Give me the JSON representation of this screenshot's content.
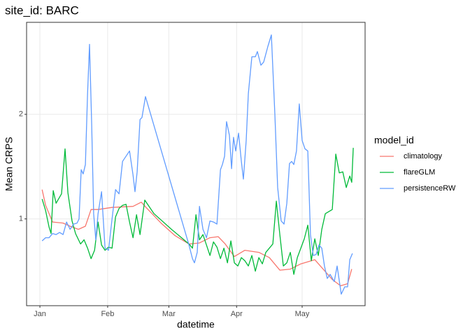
{
  "chart_data": {
    "type": "line",
    "title": "site_id: BARC",
    "x_label": "datetime",
    "y_label": "Mean CRPS",
    "legend_title": "model_id",
    "legend_position": "right",
    "grid": true,
    "xlim": [
      -6.1,
      148.8
    ],
    "xticks": [
      {
        "value": 0,
        "label": "Jan"
      },
      {
        "value": 31,
        "label": "Feb"
      },
      {
        "value": 59,
        "label": "Mar"
      },
      {
        "value": 90,
        "label": "Apr"
      },
      {
        "value": 120,
        "label": "May"
      }
    ],
    "ylim": [
      0.17,
      2.88
    ],
    "yticks": [
      1,
      2
    ],
    "series": [
      {
        "name": "climatology",
        "color": "#F8766D",
        "x": [
          1.0,
          2.6,
          5.8,
          10.6,
          13.8,
          17.6,
          20.8,
          23.4,
          26.6,
          33.0,
          42.6,
          46.4,
          49.0,
          55.4,
          61.8,
          68.2,
          73.0,
          77.8,
          81.6,
          84.8,
          89.0,
          93.8,
          100.2,
          105.0,
          109.8,
          114.6,
          119.4,
          125.8,
          129.6,
          133.8,
          137.6,
          140.8,
          142.7
        ],
        "values": [
          1.28,
          1.13,
          0.97,
          0.96,
          0.93,
          0.9,
          0.93,
          1.09,
          1.09,
          1.11,
          1.12,
          1.16,
          1.1,
          0.96,
          0.84,
          0.76,
          0.77,
          0.82,
          0.83,
          0.76,
          0.64,
          0.7,
          0.68,
          0.63,
          0.51,
          0.52,
          0.57,
          0.61,
          0.52,
          0.42,
          0.36,
          0.38,
          0.52
        ]
      },
      {
        "name": "flareGLM",
        "color": "#00BA38",
        "x": [
          1.0,
          2.6,
          4.2,
          5.1,
          6.1,
          7.4,
          9.9,
          11.5,
          12.8,
          14.7,
          16.3,
          18.6,
          20.2,
          21.8,
          23.4,
          25.0,
          26.6,
          28.2,
          29.8,
          31.4,
          33.0,
          34.6,
          36.2,
          37.8,
          39.4,
          41.0,
          42.6,
          44.2,
          45.8,
          48.0,
          52.2,
          60.2,
          68.2,
          69.8,
          71.4,
          73.0,
          74.6,
          76.2,
          77.8,
          79.4,
          81.0,
          82.6,
          84.2,
          85.8,
          87.4,
          89.0,
          90.6,
          92.2,
          93.8,
          95.4,
          97.0,
          98.6,
          100.2,
          101.8,
          103.4,
          105.0,
          106.6,
          108.2,
          109.8,
          111.4,
          113.0,
          114.6,
          116.2,
          117.8,
          119.4,
          121.0,
          122.6,
          124.2,
          125.8,
          127.4,
          129.0,
          130.6,
          132.2,
          133.8,
          135.4,
          137.0,
          138.6,
          140.2,
          141.8,
          142.7,
          143.4
        ],
        "values": [
          1.19,
          1.08,
          0.92,
          0.86,
          1.27,
          1.15,
          1.24,
          1.67,
          1.25,
          0.98,
          0.86,
          0.76,
          0.8,
          0.72,
          0.62,
          0.7,
          0.97,
          0.75,
          0.7,
          0.73,
          0.72,
          1.02,
          1.1,
          1.13,
          1.14,
          0.97,
          0.82,
          1.04,
          0.85,
          1.18,
          1.05,
          0.9,
          0.76,
          0.72,
          1.04,
          0.8,
          0.85,
          0.75,
          0.65,
          0.78,
          0.73,
          0.62,
          0.72,
          0.58,
          0.79,
          0.58,
          0.55,
          0.63,
          0.6,
          0.55,
          0.65,
          0.5,
          0.63,
          0.57,
          0.68,
          0.72,
          0.76,
          1.17,
          0.85,
          0.55,
          0.58,
          0.68,
          0.47,
          0.63,
          0.72,
          0.81,
          0.94,
          0.6,
          0.81,
          0.65,
          0.9,
          1.05,
          1.07,
          1.09,
          1.62,
          1.44,
          1.45,
          1.3,
          1.41,
          1.35,
          1.68
        ]
      },
      {
        "name": "persistenceRW",
        "color": "#619CFF",
        "x": [
          1.0,
          2.6,
          4.2,
          5.8,
          7.4,
          9.0,
          10.6,
          12.2,
          13.8,
          15.4,
          17.0,
          17.9,
          18.9,
          19.8,
          20.8,
          21.8,
          22.7,
          23.7,
          24.6,
          25.6,
          26.6,
          28.2,
          29.8,
          31.4,
          33.0,
          34.6,
          36.2,
          37.8,
          39.4,
          41.0,
          42.6,
          43.5,
          44.5,
          45.8,
          46.7,
          48.3,
          68.2,
          69.8,
          70.7,
          72.0,
          73.0,
          74.6,
          76.2,
          77.8,
          79.4,
          81.0,
          82.6,
          83.5,
          84.5,
          85.4,
          86.7,
          87.7,
          88.6,
          89.6,
          90.9,
          92.2,
          93.1,
          94.4,
          95.4,
          97.0,
          98.6,
          99.5,
          101.1,
          102.4,
          104.3,
          105.9,
          107.5,
          108.8,
          110.4,
          111.7,
          113.0,
          114.2,
          115.2,
          116.2,
          117.4,
          118.7,
          120.0,
          121.3,
          122.6,
          123.8,
          125.1,
          126.4,
          127.7,
          129.0,
          130.2,
          131.5,
          132.8,
          134.7,
          136.0,
          137.9,
          139.5,
          140.8,
          141.8,
          143.0
        ],
        "values": [
          0.79,
          0.82,
          0.82,
          0.86,
          0.85,
          0.87,
          0.85,
          0.97,
          0.9,
          0.95,
          0.96,
          1.0,
          1.47,
          1.43,
          1.52,
          2.2,
          2.67,
          1.9,
          1.05,
          0.8,
          1.05,
          1.26,
          0.72,
          0.7,
          1.0,
          1.28,
          1.24,
          1.55,
          1.6,
          1.65,
          1.42,
          1.26,
          1.45,
          1.95,
          1.97,
          2.17,
          0.75,
          0.62,
          0.58,
          0.68,
          1.12,
          0.9,
          0.82,
          0.98,
          0.97,
          0.95,
          1.47,
          1.52,
          1.6,
          1.93,
          1.8,
          1.48,
          1.78,
          1.65,
          1.82,
          1.55,
          1.38,
          1.75,
          2.2,
          2.55,
          2.55,
          2.6,
          2.47,
          2.5,
          2.65,
          2.76,
          2.0,
          1.3,
          0.98,
          0.95,
          1.15,
          1.53,
          1.55,
          1.52,
          1.65,
          2.1,
          1.75,
          1.67,
          1.65,
          0.85,
          0.65,
          0.66,
          0.75,
          0.72,
          0.55,
          0.43,
          0.47,
          0.4,
          0.55,
          0.28,
          0.35,
          0.35,
          0.61,
          0.67
        ]
      }
    ]
  }
}
